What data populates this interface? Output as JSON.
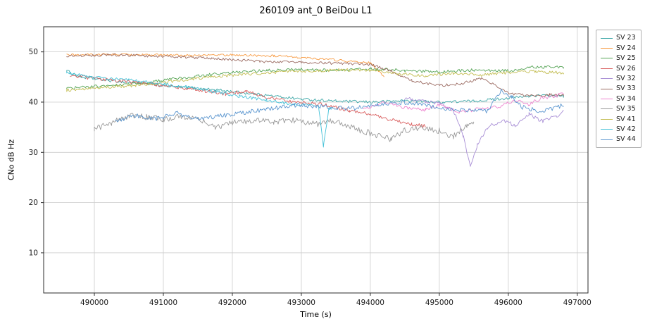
{
  "chart_data": {
    "type": "line",
    "title": "260109 ant_0 BeiDou L1",
    "xlabel": "Time (s)",
    "ylabel": "CNo dB Hz",
    "xlim": [
      489265,
      497155
    ],
    "ylim": [
      2,
      55
    ],
    "xticks": [
      490000,
      491000,
      492000,
      493000,
      494000,
      495000,
      496000,
      497000
    ],
    "yticks": [
      10,
      20,
      30,
      40,
      50
    ],
    "grid": true,
    "legend_position": "right-outside",
    "colors": {
      "grid": "#cccccc",
      "axis": "#2b2b2b",
      "background": "#ffffff"
    },
    "series": [
      {
        "name": "SV 23",
        "color": "#3fa8a8",
        "noise": 0.28,
        "points": [
          [
            489600,
            46.2
          ],
          [
            489800,
            45.0
          ],
          [
            490200,
            44.3
          ],
          [
            490700,
            43.7
          ],
          [
            491200,
            43.0
          ],
          [
            491800,
            42.4
          ],
          [
            492400,
            41.5
          ],
          [
            493000,
            40.6
          ],
          [
            493500,
            40.2
          ],
          [
            494000,
            40.0
          ],
          [
            494500,
            40.3
          ],
          [
            495000,
            40.0
          ],
          [
            495500,
            40.2
          ],
          [
            496000,
            40.8
          ],
          [
            496400,
            41.3
          ],
          [
            496800,
            41.2
          ]
        ]
      },
      {
        "name": "SV 24",
        "color": "#f79b43",
        "noise": 0.22,
        "points": [
          [
            489600,
            49.4
          ],
          [
            490200,
            49.5
          ],
          [
            490800,
            49.4
          ],
          [
            491400,
            49.3
          ],
          [
            492000,
            49.4
          ],
          [
            492600,
            49.2
          ],
          [
            493000,
            48.9
          ],
          [
            493400,
            48.5
          ],
          [
            493800,
            48.0
          ],
          [
            494000,
            47.8
          ],
          [
            494100,
            46.5
          ],
          [
            494200,
            44.9
          ]
        ]
      },
      {
        "name": "SV 25",
        "color": "#57a557",
        "noise": 0.3,
        "points": [
          [
            489600,
            42.7
          ],
          [
            490000,
            43.1
          ],
          [
            490500,
            43.6
          ],
          [
            491000,
            44.3
          ],
          [
            491500,
            45.2
          ],
          [
            492000,
            45.9
          ],
          [
            492500,
            46.3
          ],
          [
            493000,
            46.5
          ],
          [
            493500,
            46.3
          ],
          [
            494000,
            46.6
          ],
          [
            494500,
            46.3
          ],
          [
            495000,
            46.0
          ],
          [
            495500,
            46.4
          ],
          [
            496000,
            46.2
          ],
          [
            496300,
            46.9
          ],
          [
            496800,
            47.0
          ]
        ]
      },
      {
        "name": "SV 26",
        "color": "#d95f5f",
        "noise": 0.35,
        "points": [
          [
            489650,
            45.4
          ],
          [
            490000,
            44.7
          ],
          [
            490400,
            44.2
          ],
          [
            490900,
            43.5
          ],
          [
            491400,
            42.6
          ],
          [
            491900,
            41.6
          ],
          [
            492200,
            42.2
          ],
          [
            492500,
            40.9
          ],
          [
            492900,
            40.0
          ],
          [
            493300,
            39.6
          ],
          [
            493700,
            38.3
          ],
          [
            494000,
            37.6
          ],
          [
            494300,
            36.5
          ],
          [
            494600,
            35.6
          ],
          [
            494800,
            35.2
          ]
        ]
      },
      {
        "name": "SV 32",
        "color": "#a98fd6",
        "noise": 0.4,
        "points": [
          [
            494500,
            40.9
          ],
          [
            494800,
            40.2
          ],
          [
            495000,
            39.8
          ],
          [
            495200,
            38.5
          ],
          [
            495350,
            33.0
          ],
          [
            495450,
            27.2
          ],
          [
            495550,
            31.5
          ],
          [
            495700,
            35.0
          ],
          [
            495900,
            36.3
          ],
          [
            496100,
            35.4
          ],
          [
            496300,
            37.6
          ],
          [
            496500,
            36.2
          ],
          [
            496700,
            37.2
          ],
          [
            496800,
            38.1
          ]
        ]
      },
      {
        "name": "SV 33",
        "color": "#9b6b62",
        "noise": 0.26,
        "points": [
          [
            489600,
            49.2
          ],
          [
            490300,
            49.4
          ],
          [
            491000,
            49.1
          ],
          [
            491700,
            48.7
          ],
          [
            492400,
            48.1
          ],
          [
            493000,
            47.9
          ],
          [
            493600,
            47.7
          ],
          [
            494000,
            47.5
          ],
          [
            494300,
            46.2
          ],
          [
            494600,
            44.3
          ],
          [
            495000,
            43.3
          ],
          [
            495300,
            43.6
          ],
          [
            495600,
            44.7
          ],
          [
            495800,
            43.5
          ],
          [
            496000,
            41.8
          ],
          [
            496300,
            41.2
          ],
          [
            496600,
            41.5
          ],
          [
            496800,
            41.4
          ]
        ]
      },
      {
        "name": "SV 34",
        "color": "#ee86d0",
        "noise": 0.35,
        "points": [
          [
            493900,
            38.6
          ],
          [
            494200,
            39.9
          ],
          [
            494500,
            38.9
          ],
          [
            494800,
            38.4
          ],
          [
            495000,
            39.4
          ],
          [
            495300,
            38.0
          ],
          [
            495600,
            38.7
          ],
          [
            495900,
            39.2
          ],
          [
            496100,
            40.4
          ],
          [
            496300,
            39.6
          ],
          [
            496500,
            40.9
          ],
          [
            496700,
            41.2
          ],
          [
            496800,
            41.9
          ]
        ]
      },
      {
        "name": "SV 35",
        "color": "#9a9a9a",
        "noise": 0.6,
        "points": [
          [
            490000,
            34.6
          ],
          [
            490250,
            35.8
          ],
          [
            490500,
            37.3
          ],
          [
            490750,
            37.0
          ],
          [
            491000,
            36.6
          ],
          [
            491250,
            37.2
          ],
          [
            491500,
            36.7
          ],
          [
            491750,
            34.8
          ],
          [
            492000,
            35.9
          ],
          [
            492300,
            36.4
          ],
          [
            492600,
            36.1
          ],
          [
            492900,
            36.4
          ],
          [
            493200,
            35.6
          ],
          [
            493500,
            36.4
          ],
          [
            493800,
            34.6
          ],
          [
            494100,
            33.4
          ],
          [
            494300,
            32.6
          ],
          [
            494500,
            34.3
          ],
          [
            494800,
            35.0
          ],
          [
            495000,
            34.3
          ],
          [
            495200,
            33.1
          ],
          [
            495400,
            35.3
          ],
          [
            495500,
            35.6
          ]
        ]
      },
      {
        "name": "SV 41",
        "color": "#c3bd52",
        "noise": 0.3,
        "points": [
          [
            489600,
            42.4
          ],
          [
            490100,
            42.9
          ],
          [
            490600,
            43.3
          ],
          [
            491100,
            44.1
          ],
          [
            491600,
            44.9
          ],
          [
            492100,
            45.5
          ],
          [
            492600,
            45.9
          ],
          [
            493100,
            46.2
          ],
          [
            493600,
            46.4
          ],
          [
            494000,
            46.3
          ],
          [
            494400,
            45.7
          ],
          [
            494800,
            45.2
          ],
          [
            495200,
            45.8
          ],
          [
            495600,
            45.4
          ],
          [
            496000,
            45.9
          ],
          [
            496400,
            46.1
          ],
          [
            496800,
            45.8
          ]
        ]
      },
      {
        "name": "SV 42",
        "color": "#45c2d8",
        "noise": 0.3,
        "points": [
          [
            489600,
            45.9
          ],
          [
            490000,
            44.9
          ],
          [
            490500,
            44.4
          ],
          [
            491000,
            43.6
          ],
          [
            491300,
            43.1
          ],
          [
            491700,
            42.2
          ],
          [
            492100,
            41.2
          ],
          [
            492500,
            40.4
          ],
          [
            492900,
            39.5
          ],
          [
            493100,
            39.4
          ],
          [
            493250,
            39.2
          ],
          [
            493320,
            31.3
          ],
          [
            493400,
            38.8
          ],
          [
            493450,
            38.9
          ]
        ]
      },
      {
        "name": "SV 44",
        "color": "#5b96cf",
        "noise": 0.45,
        "points": [
          [
            490300,
            36.1
          ],
          [
            490600,
            37.3
          ],
          [
            490900,
            36.7
          ],
          [
            491200,
            37.8
          ],
          [
            491500,
            36.6
          ],
          [
            491800,
            37.2
          ],
          [
            492100,
            37.8
          ],
          [
            492500,
            38.6
          ],
          [
            492900,
            39.4
          ],
          [
            493300,
            39.1
          ],
          [
            493700,
            38.7
          ],
          [
            494100,
            39.4
          ],
          [
            494500,
            39.9
          ],
          [
            494900,
            39.1
          ],
          [
            495300,
            38.4
          ],
          [
            495700,
            38.2
          ],
          [
            495900,
            42.3
          ],
          [
            496050,
            41.0
          ],
          [
            496200,
            39.0
          ],
          [
            496500,
            38.1
          ],
          [
            496800,
            39.4
          ]
        ]
      }
    ]
  }
}
